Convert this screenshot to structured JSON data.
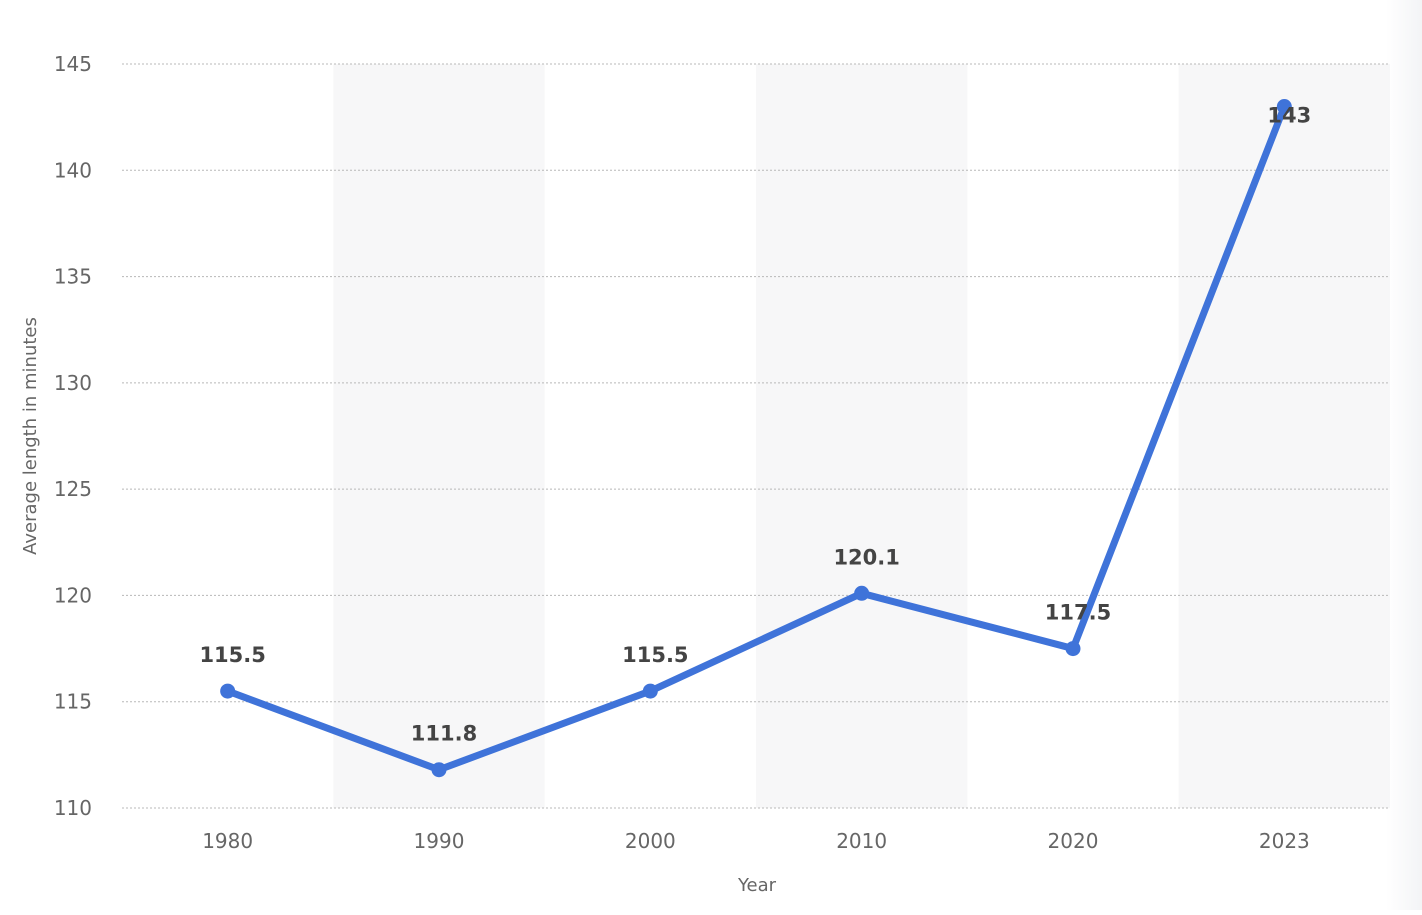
{
  "chart_data": {
    "type": "line",
    "categories": [
      "1980",
      "1990",
      "2000",
      "2010",
      "2020",
      "2023"
    ],
    "values": [
      115.5,
      111.8,
      115.5,
      120.1,
      117.5,
      143
    ],
    "value_labels": [
      "115.5",
      "111.8",
      "115.5",
      "120.1",
      "117.5",
      "143"
    ],
    "xlabel": "Year",
    "ylabel": "Average length in minutes",
    "ylim": [
      110,
      145
    ],
    "yticks": [
      "110",
      "115",
      "120",
      "125",
      "130",
      "135",
      "140",
      "145"
    ],
    "grid": true,
    "legend": "none",
    "line_color": "#3f73d9",
    "band_color": "#f7f7f8",
    "grid_color": "#b8b8b8"
  }
}
